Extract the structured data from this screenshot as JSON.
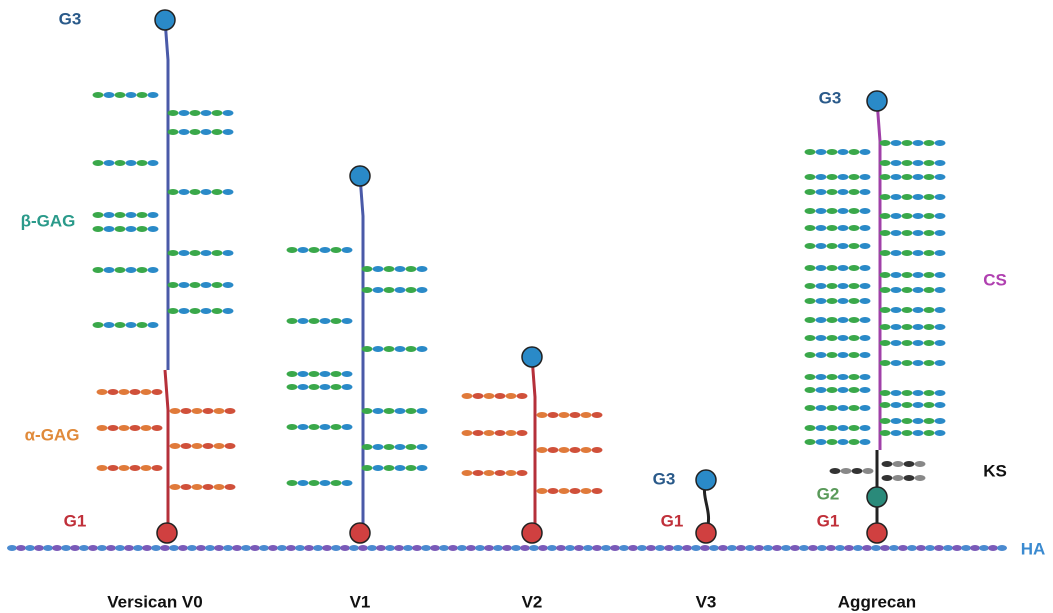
{
  "baseline_label": "HA",
  "molecules": [
    {
      "name": "Versican V0",
      "domains": [
        "G3",
        "β-GAG",
        "α-GAG",
        "G1"
      ]
    },
    {
      "name": "V1"
    },
    {
      "name": "V2"
    },
    {
      "name": "V3",
      "domains": [
        "G3",
        "G1"
      ]
    },
    {
      "name": "Aggrecan",
      "domains": [
        "G3",
        "CS",
        "KS",
        "G2",
        "G1"
      ]
    }
  ]
}
